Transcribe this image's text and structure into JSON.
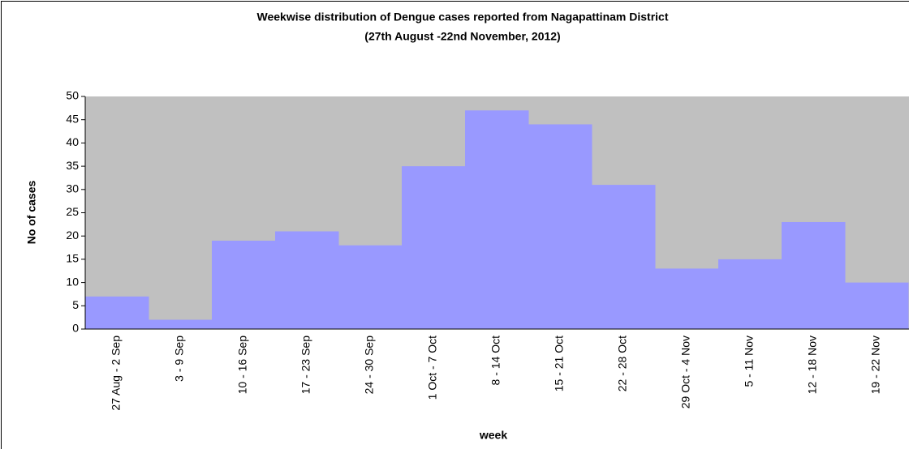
{
  "chart_data": {
    "type": "bar",
    "title": "Weekwise distribution of Dengue cases reported from Nagapattinam District",
    "subtitle": "(27th August -22nd November, 2012)",
    "xlabel": "week",
    "ylabel": "No of cases",
    "categories": [
      "27 Aug - 2 Sep",
      "3 - 9 Sep",
      "10 - 16 Sep",
      "17 - 23 Sep",
      "24 - 30 Sep",
      "1 Oct - 7 Oct",
      "8 - 14 Oct",
      "15 - 21 Oct",
      "22 - 28 Oct",
      "29 Oct - 4 Nov",
      "5 - 11 Nov",
      "12 - 18 Nov",
      "19 - 22 Nov"
    ],
    "values": [
      7,
      2,
      19,
      21,
      18,
      35,
      47,
      44,
      31,
      13,
      15,
      23,
      10
    ],
    "color": "#9999ff",
    "background": "#c0c0c0",
    "ylim": [
      0,
      50
    ],
    "yticks": [
      0,
      5,
      10,
      15,
      20,
      25,
      30,
      35,
      40,
      45,
      50
    ]
  }
}
